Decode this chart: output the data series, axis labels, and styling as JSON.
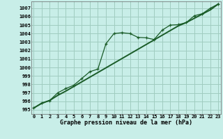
{
  "title": "Graphe pression niveau de la mer (hPa)",
  "bg_color": "#c8eee8",
  "grid_color": "#a0ccc0",
  "line_color": "#1a5c28",
  "line1_x": [
    0,
    1,
    2,
    3,
    4,
    5,
    6,
    7,
    8,
    9,
    10,
    11,
    12,
    13,
    14,
    15,
    16,
    17,
    18,
    19,
    20,
    21,
    22,
    23
  ],
  "line1_y": [
    995.2,
    995.8,
    996.1,
    997.0,
    997.5,
    997.9,
    998.7,
    999.5,
    999.8,
    1002.8,
    1004.0,
    1004.1,
    1004.0,
    1003.55,
    1003.5,
    1003.3,
    1004.4,
    1005.0,
    1005.05,
    1005.3,
    1006.1,
    1006.35,
    1007.0,
    1007.5
  ],
  "line2_x": [
    0,
    1,
    2,
    3,
    4,
    5,
    6,
    7,
    8,
    9,
    10,
    11,
    12,
    13,
    14,
    15,
    16,
    17,
    18,
    19,
    20,
    21,
    22,
    23
  ],
  "line2_y": [
    995.2,
    995.75,
    996.1,
    996.7,
    997.2,
    997.75,
    998.3,
    998.85,
    999.4,
    999.95,
    1000.5,
    1001.05,
    1001.6,
    1002.15,
    1002.7,
    1003.25,
    1003.8,
    1004.35,
    1004.9,
    1005.3,
    1005.8,
    1006.3,
    1006.8,
    1007.5
  ],
  "ylim": [
    994.5,
    1007.8
  ],
  "xlim": [
    -0.3,
    23.3
  ],
  "yticks": [
    995,
    996,
    997,
    998,
    999,
    1000,
    1001,
    1002,
    1003,
    1004,
    1005,
    1006,
    1007
  ],
  "xticks": [
    0,
    1,
    2,
    3,
    4,
    5,
    6,
    7,
    8,
    9,
    10,
    11,
    12,
    13,
    14,
    15,
    16,
    17,
    18,
    19,
    20,
    21,
    22,
    23
  ]
}
